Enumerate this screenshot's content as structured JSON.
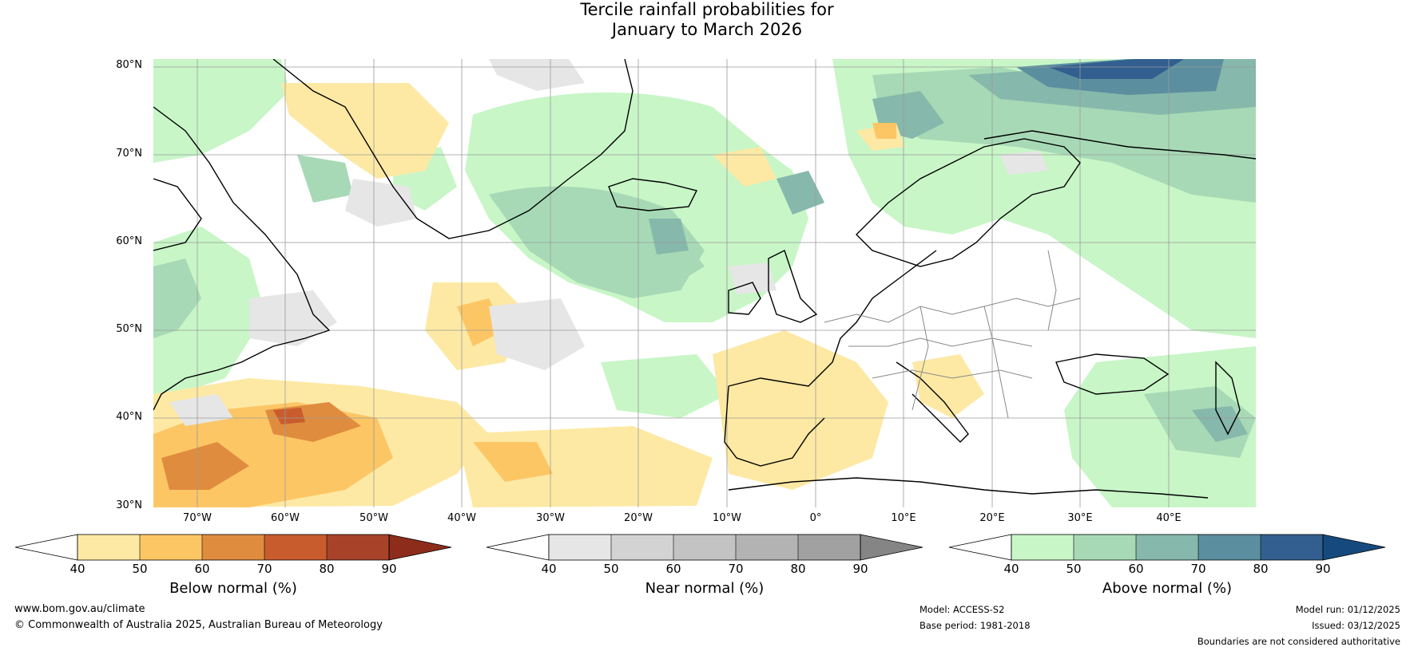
{
  "title": {
    "line1": "Tercile rainfall probabilities for",
    "line2": "January to March 2026"
  },
  "map": {
    "region": "North Atlantic and Europe",
    "lat_labels": [
      "80°N",
      "70°N",
      "60°N",
      "50°N",
      "40°N",
      "30°N"
    ],
    "lon_labels": [
      "70°W",
      "60°W",
      "50°W",
      "40°W",
      "30°W",
      "20°W",
      "10°W",
      "0°",
      "10°E",
      "20°E",
      "30°E",
      "40°E"
    ],
    "lat_range": [
      30,
      80
    ],
    "lon_range": [
      -75,
      50
    ],
    "grid": true
  },
  "colorbars": [
    {
      "label": "Below normal (%)",
      "ticks": [
        "40",
        "50",
        "60",
        "70",
        "80",
        "90"
      ],
      "colors": [
        "#ffffff",
        "#fde9a4",
        "#fdc665",
        "#e08c3e",
        "#c95c2d",
        "#a8432a",
        "#8e2c1c"
      ]
    },
    {
      "label": "Near normal (%)",
      "ticks": [
        "40",
        "50",
        "60",
        "70",
        "80",
        "90"
      ],
      "colors": [
        "#ffffff",
        "#e6e6e6",
        "#d3d3d3",
        "#c3c3c3",
        "#b3b3b3",
        "#a1a1a1",
        "#858585"
      ]
    },
    {
      "label": "Above normal (%)",
      "ticks": [
        "40",
        "50",
        "60",
        "70",
        "80",
        "90"
      ],
      "colors": [
        "#ffffff",
        "#c8f6c7",
        "#a7d9b6",
        "#86b8ab",
        "#5b8f9f",
        "#325f8f",
        "#164a7e"
      ]
    }
  ],
  "footer": {
    "website": "www.bom.gov.au/climate",
    "copyright": "© Commonwealth of Australia 2025, Australian Bureau of Meteorology",
    "model": "Model: ACCESS-S2",
    "base_period": "Base period: 1981-2018",
    "model_run": "Model run: 01/12/2025",
    "issued": "Issued: 03/12/2025",
    "disclaimer": "Boundaries are not considered authoritative"
  }
}
